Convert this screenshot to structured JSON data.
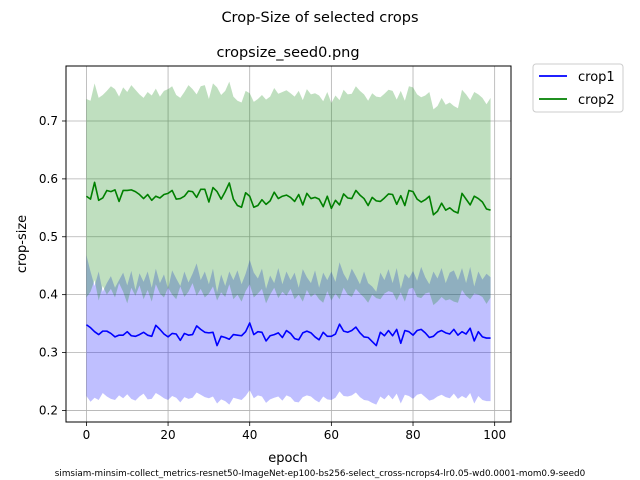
{
  "figure": {
    "suptitle": "Crop-Size of selected crops",
    "footer": "simsiam-minsim-collect_metrics-resnet50-ImageNet-ep100-bs256-select_cross-ncrops4-lr0.05-wd0.0001-mom0.9-seed0"
  },
  "chart_data": {
    "type": "line",
    "title": "cropsize_seed0.png",
    "xlabel": "epoch",
    "ylabel": "crop-size",
    "xlim": [
      -5,
      104
    ],
    "ylim": [
      0.18,
      0.795
    ],
    "xticks": [
      0,
      20,
      40,
      60,
      80,
      100
    ],
    "yticks": [
      0.2,
      0.3,
      0.4,
      0.5,
      0.6,
      0.7
    ],
    "xtick_labels": [
      "0",
      "20",
      "40",
      "60",
      "80",
      "100"
    ],
    "ytick_labels": [
      "0.2",
      "0.3",
      "0.4",
      "0.5",
      "0.6",
      "0.7"
    ],
    "grid": true,
    "legend": "outside-upper-right",
    "x": [
      0,
      1,
      2,
      3,
      4,
      5,
      6,
      7,
      8,
      9,
      10,
      11,
      12,
      13,
      14,
      15,
      16,
      17,
      18,
      19,
      20,
      21,
      22,
      23,
      24,
      25,
      26,
      27,
      28,
      29,
      30,
      31,
      32,
      33,
      34,
      35,
      36,
      37,
      38,
      39,
      40,
      41,
      42,
      43,
      44,
      45,
      46,
      47,
      48,
      49,
      50,
      51,
      52,
      53,
      54,
      55,
      56,
      57,
      58,
      59,
      60,
      61,
      62,
      63,
      64,
      65,
      66,
      67,
      68,
      69,
      70,
      71,
      72,
      73,
      74,
      75,
      76,
      77,
      78,
      79,
      80,
      81,
      82,
      83,
      84,
      85,
      86,
      87,
      88,
      89,
      90,
      91,
      92,
      93,
      94,
      95,
      96,
      97,
      98,
      99
    ],
    "series": [
      {
        "name": "crop1",
        "color": "#0000ff",
        "band_color": "#0000ff",
        "mean": [
          0.348,
          0.343,
          0.336,
          0.331,
          0.337,
          0.337,
          0.333,
          0.327,
          0.33,
          0.33,
          0.336,
          0.329,
          0.328,
          0.331,
          0.335,
          0.33,
          0.328,
          0.347,
          0.34,
          0.332,
          0.327,
          0.333,
          0.332,
          0.321,
          0.333,
          0.33,
          0.331,
          0.346,
          0.34,
          0.335,
          0.334,
          0.335,
          0.312,
          0.328,
          0.326,
          0.323,
          0.331,
          0.33,
          0.329,
          0.336,
          0.351,
          0.331,
          0.336,
          0.335,
          0.32,
          0.329,
          0.331,
          0.334,
          0.326,
          0.338,
          0.333,
          0.324,
          0.322,
          0.334,
          0.337,
          0.334,
          0.327,
          0.322,
          0.335,
          0.328,
          0.328,
          0.332,
          0.349,
          0.337,
          0.335,
          0.338,
          0.344,
          0.334,
          0.327,
          0.326,
          0.319,
          0.312,
          0.335,
          0.329,
          0.338,
          0.329,
          0.34,
          0.316,
          0.338,
          0.336,
          0.33,
          0.338,
          0.34,
          0.334,
          0.326,
          0.328,
          0.335,
          0.338,
          0.334,
          0.332,
          0.34,
          0.33,
          0.336,
          0.332,
          0.342,
          0.32,
          0.336,
          0.327,
          0.325,
          0.325
        ],
        "lower": [
          0.225,
          0.215,
          0.222,
          0.218,
          0.23,
          0.224,
          0.22,
          0.218,
          0.226,
          0.221,
          0.228,
          0.22,
          0.217,
          0.224,
          0.229,
          0.219,
          0.22,
          0.23,
          0.226,
          0.221,
          0.218,
          0.225,
          0.222,
          0.214,
          0.223,
          0.22,
          0.222,
          0.231,
          0.227,
          0.223,
          0.221,
          0.224,
          0.212,
          0.219,
          0.216,
          0.21,
          0.222,
          0.22,
          0.218,
          0.225,
          0.235,
          0.221,
          0.226,
          0.224,
          0.213,
          0.219,
          0.222,
          0.224,
          0.217,
          0.226,
          0.223,
          0.215,
          0.214,
          0.223,
          0.226,
          0.224,
          0.218,
          0.214,
          0.224,
          0.219,
          0.218,
          0.222,
          0.233,
          0.225,
          0.224,
          0.226,
          0.231,
          0.223,
          0.218,
          0.217,
          0.213,
          0.21,
          0.224,
          0.219,
          0.227,
          0.219,
          0.229,
          0.212,
          0.227,
          0.225,
          0.22,
          0.227,
          0.229,
          0.223,
          0.217,
          0.219,
          0.224,
          0.227,
          0.223,
          0.221,
          0.229,
          0.22,
          0.225,
          0.221,
          0.23,
          0.212,
          0.225,
          0.218,
          0.216,
          0.216
        ],
        "upper": [
          0.468,
          0.44,
          0.415,
          0.44,
          0.405,
          0.42,
          0.432,
          0.412,
          0.425,
          0.438,
          0.416,
          0.441,
          0.408,
          0.437,
          0.422,
          0.44,
          0.412,
          0.445,
          0.42,
          0.435,
          0.41,
          0.442,
          0.428,
          0.415,
          0.44,
          0.421,
          0.436,
          0.454,
          0.425,
          0.44,
          0.418,
          0.445,
          0.404,
          0.435,
          0.415,
          0.44,
          0.425,
          0.442,
          0.418,
          0.436,
          0.46,
          0.438,
          0.428,
          0.445,
          0.41,
          0.433,
          0.42,
          0.446,
          0.418,
          0.44,
          0.425,
          0.438,
          0.412,
          0.444,
          0.43,
          0.42,
          0.442,
          0.412,
          0.438,
          0.425,
          0.44,
          0.422,
          0.456,
          0.436,
          0.424,
          0.445,
          0.432,
          0.418,
          0.44,
          0.42,
          0.414,
          0.405,
          0.438,
          0.425,
          0.444,
          0.42,
          0.446,
          0.41,
          0.436,
          0.428,
          0.441,
          0.424,
          0.448,
          0.43,
          0.418,
          0.44,
          0.428,
          0.446,
          0.42,
          0.438,
          0.442,
          0.425,
          0.446,
          0.42,
          0.448,
          0.414,
          0.44,
          0.426,
          0.436,
          0.43
        ]
      },
      {
        "name": "crop2",
        "color": "#008000",
        "band_color": "#008000",
        "mean": [
          0.57,
          0.565,
          0.594,
          0.563,
          0.567,
          0.58,
          0.578,
          0.581,
          0.561,
          0.58,
          0.58,
          0.581,
          0.578,
          0.573,
          0.566,
          0.573,
          0.563,
          0.57,
          0.567,
          0.573,
          0.575,
          0.58,
          0.565,
          0.566,
          0.57,
          0.579,
          0.578,
          0.568,
          0.582,
          0.582,
          0.56,
          0.585,
          0.578,
          0.565,
          0.578,
          0.593,
          0.565,
          0.554,
          0.551,
          0.576,
          0.57,
          0.551,
          0.554,
          0.564,
          0.556,
          0.562,
          0.577,
          0.566,
          0.57,
          0.572,
          0.568,
          0.561,
          0.573,
          0.555,
          0.575,
          0.566,
          0.568,
          0.565,
          0.552,
          0.57,
          0.549,
          0.563,
          0.555,
          0.574,
          0.567,
          0.566,
          0.58,
          0.572,
          0.566,
          0.554,
          0.568,
          0.562,
          0.561,
          0.567,
          0.574,
          0.573,
          0.556,
          0.571,
          0.554,
          0.58,
          0.578,
          0.565,
          0.56,
          0.564,
          0.57,
          0.538,
          0.544,
          0.558,
          0.546,
          0.55,
          0.544,
          0.541,
          0.575,
          0.565,
          0.555,
          0.57,
          0.566,
          0.56,
          0.548,
          0.546
        ],
        "lower": [
          0.395,
          0.405,
          0.425,
          0.39,
          0.415,
          0.4,
          0.41,
          0.395,
          0.42,
          0.405,
          0.385,
          0.412,
          0.398,
          0.416,
          0.392,
          0.408,
          0.388,
          0.418,
          0.402,
          0.395,
          0.412,
          0.4,
          0.392,
          0.414,
          0.396,
          0.405,
          0.42,
          0.398,
          0.41,
          0.395,
          0.402,
          0.414,
          0.39,
          0.404,
          0.396,
          0.418,
          0.392,
          0.4,
          0.388,
          0.406,
          0.418,
          0.395,
          0.402,
          0.41,
          0.385,
          0.4,
          0.412,
          0.394,
          0.405,
          0.398,
          0.41,
          0.392,
          0.4,
          0.388,
          0.408,
          0.396,
          0.402,
          0.392,
          0.386,
          0.406,
          0.39,
          0.402,
          0.392,
          0.412,
          0.4,
          0.396,
          0.41,
          0.402,
          0.395,
          0.386,
          0.4,
          0.394,
          0.392,
          0.402,
          0.406,
          0.404,
          0.39,
          0.404,
          0.388,
          0.41,
          0.412,
          0.396,
          0.394,
          0.402,
          0.404,
          0.382,
          0.388,
          0.396,
          0.39,
          0.392,
          0.388,
          0.386,
          0.408,
          0.398,
          0.392,
          0.402,
          0.4,
          0.396,
          0.384,
          0.395
        ],
        "upper": [
          0.738,
          0.735,
          0.765,
          0.74,
          0.745,
          0.752,
          0.76,
          0.755,
          0.742,
          0.758,
          0.75,
          0.762,
          0.754,
          0.746,
          0.74,
          0.75,
          0.744,
          0.756,
          0.742,
          0.752,
          0.755,
          0.76,
          0.745,
          0.74,
          0.75,
          0.762,
          0.755,
          0.746,
          0.76,
          0.762,
          0.738,
          0.765,
          0.758,
          0.745,
          0.752,
          0.768,
          0.742,
          0.735,
          0.732,
          0.752,
          0.748,
          0.733,
          0.738,
          0.745,
          0.737,
          0.742,
          0.757,
          0.747,
          0.75,
          0.753,
          0.748,
          0.742,
          0.752,
          0.736,
          0.755,
          0.746,
          0.748,
          0.744,
          0.734,
          0.75,
          0.731,
          0.744,
          0.736,
          0.754,
          0.746,
          0.747,
          0.76,
          0.752,
          0.746,
          0.735,
          0.748,
          0.742,
          0.741,
          0.747,
          0.754,
          0.752,
          0.737,
          0.752,
          0.735,
          0.76,
          0.758,
          0.746,
          0.741,
          0.744,
          0.75,
          0.72,
          0.726,
          0.74,
          0.728,
          0.732,
          0.726,
          0.722,
          0.754,
          0.746,
          0.736,
          0.75,
          0.746,
          0.74,
          0.729,
          0.74
        ]
      }
    ]
  }
}
